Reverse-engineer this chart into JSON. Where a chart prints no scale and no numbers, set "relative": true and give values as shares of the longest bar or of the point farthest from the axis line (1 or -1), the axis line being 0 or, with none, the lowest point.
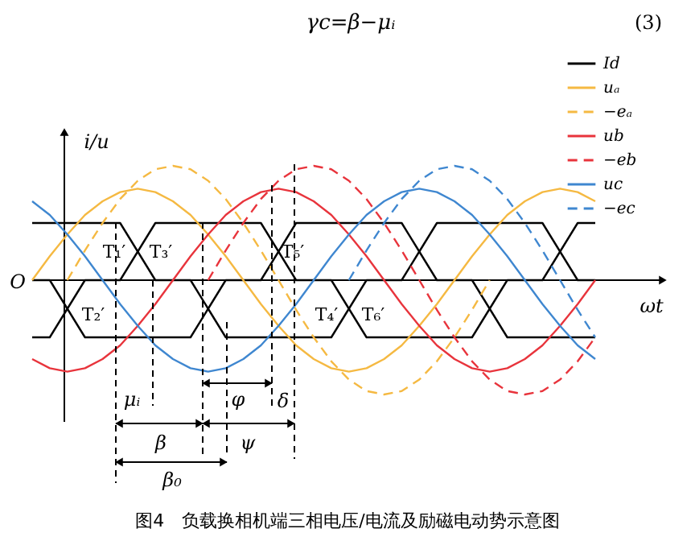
{
  "chart_data": {
    "type": "line",
    "relative": true,
    "tick_labels": false,
    "legend": "top right",
    "xlabel": "ωt",
    "ylabel": "i/u",
    "annotations": [
      "γc=β−μᵢ",
      "(3)",
      "O",
      "T₁′",
      "T₃′",
      "T₅′",
      "T₂′",
      "T₄′",
      "T₆′",
      "μᵢ",
      "φ",
      "δ",
      "β",
      "ψ",
      "β₀",
      "图4　负载换相机端三相电压/电流及励磁电动势示意图"
    ],
    "categories": [
      null,
      null,
      null,
      null,
      null,
      null,
      null,
      null,
      null,
      null,
      null,
      null,
      null,
      null,
      null,
      null,
      null,
      null,
      null,
      null,
      null,
      null,
      null,
      null,
      null,
      null,
      null,
      null,
      null,
      null,
      null,
      null,
      null
    ],
    "series": [
      {
        "name": "Id",
        "color": "#000000",
        "line_style": "solid",
        "values": [
          -0.5,
          -0.5,
          -0.25,
          0,
          0,
          0,
          0.25,
          0.5,
          0.5,
          0.5,
          0.5,
          0.5,
          0.5,
          0.5,
          0.25,
          0,
          0,
          0,
          -0.25,
          -0.5,
          -0.5,
          -0.5,
          -0.5,
          -0.5,
          -0.5,
          -0.5,
          -0.25,
          0,
          0,
          0,
          0.25,
          0.5,
          0.5
        ]
      },
      {
        "color": "#000000",
        "line_style": "solid",
        "values": [
          0,
          0,
          -0.25,
          -0.5,
          -0.5,
          -0.5,
          -0.5,
          -0.5,
          -0.5,
          -0.5,
          -0.25,
          0,
          0,
          0,
          0.25,
          0.5,
          0.5,
          0.5,
          0.5,
          0.5,
          0.5,
          0.5,
          0.25,
          0,
          0,
          0,
          -0.25,
          -0.5,
          -0.5,
          -0.5,
          -0.5,
          -0.5,
          -0.5
        ]
      },
      {
        "color": "#000000",
        "line_style": "solid",
        "values": [
          0.5,
          0.5,
          0.5,
          0.5,
          0.5,
          0.5,
          0.25,
          0,
          0,
          0,
          -0.25,
          -0.5,
          -0.5,
          -0.5,
          -0.5,
          -0.5,
          -0.5,
          -0.5,
          -0.25,
          0,
          0,
          0,
          0.25,
          0.5,
          0.5,
          0.5,
          0.5,
          0.5,
          0.5,
          0.5,
          0.25,
          0,
          0
        ]
      },
      {
        "name": "uₐ",
        "color": "#f5b942",
        "line_style": "solid",
        "values": [
          0,
          0.21,
          0.4,
          0.57,
          0.69,
          0.77,
          0.8,
          0.77,
          0.69,
          0.57,
          0.4,
          0.21,
          0,
          -0.21,
          -0.4,
          -0.57,
          -0.69,
          -0.77,
          -0.8,
          -0.77,
          -0.69,
          -0.57,
          -0.4,
          -0.21,
          0,
          0.21,
          0.4,
          0.57,
          0.69,
          0.77,
          0.8,
          0.77,
          0.69
        ]
      },
      {
        "name": "−eₐ",
        "color": "#f5b942",
        "line_style": "dashed",
        "values": [
          null,
          null,
          0,
          0.26,
          0.5,
          0.71,
          0.87,
          0.97,
          1,
          0.97,
          0.87,
          0.71,
          0.5,
          0.26,
          0,
          -0.26,
          -0.5,
          -0.71,
          -0.87,
          -0.97,
          -1,
          -0.97,
          -0.87,
          -0.71,
          -0.5,
          -0.26,
          0,
          null,
          null,
          null,
          null,
          null,
          null
        ]
      },
      {
        "name": "ub",
        "color": "#e8343c",
        "line_style": "solid",
        "values": [
          -0.69,
          -0.77,
          -0.8,
          -0.77,
          -0.69,
          -0.57,
          -0.4,
          -0.21,
          0,
          0.21,
          0.4,
          0.57,
          0.69,
          0.77,
          0.8,
          0.77,
          0.69,
          0.57,
          0.4,
          0.21,
          0,
          -0.21,
          -0.4,
          -0.57,
          -0.69,
          -0.77,
          -0.8,
          -0.77,
          -0.69,
          -0.57,
          -0.4,
          -0.21,
          0
        ]
      },
      {
        "name": "−eb",
        "color": "#e8343c",
        "line_style": "dashed",
        "values": [
          null,
          null,
          null,
          null,
          null,
          null,
          null,
          null,
          null,
          null,
          0,
          0.26,
          0.5,
          0.71,
          0.87,
          0.97,
          1,
          0.97,
          0.87,
          0.71,
          0.5,
          0.26,
          0,
          -0.26,
          -0.5,
          -0.71,
          -0.87,
          -0.97,
          -1,
          -0.97,
          -0.87,
          -0.71,
          -0.5
        ]
      },
      {
        "name": "uc",
        "color": "#3f87d0",
        "line_style": "solid",
        "values": [
          0.69,
          0.57,
          0.4,
          0.21,
          0,
          -0.21,
          -0.4,
          -0.57,
          -0.69,
          -0.77,
          -0.8,
          -0.77,
          -0.69,
          -0.57,
          -0.4,
          -0.21,
          0,
          0.21,
          0.4,
          0.57,
          0.69,
          0.77,
          0.8,
          0.77,
          0.69,
          0.57,
          0.4,
          0.21,
          0,
          -0.21,
          -0.4,
          -0.57,
          -0.69
        ]
      },
      {
        "name": "−ec",
        "color": "#3f87d0",
        "line_style": "dashed",
        "values": [
          null,
          null,
          null,
          null,
          null,
          null,
          null,
          null,
          null,
          null,
          null,
          null,
          null,
          null,
          null,
          null,
          null,
          null,
          0,
          0.26,
          0.5,
          0.71,
          0.87,
          0.97,
          1,
          0.97,
          0.87,
          0.71,
          0.5,
          0.26,
          0,
          -0.26,
          -0.5
        ]
      }
    ]
  }
}
